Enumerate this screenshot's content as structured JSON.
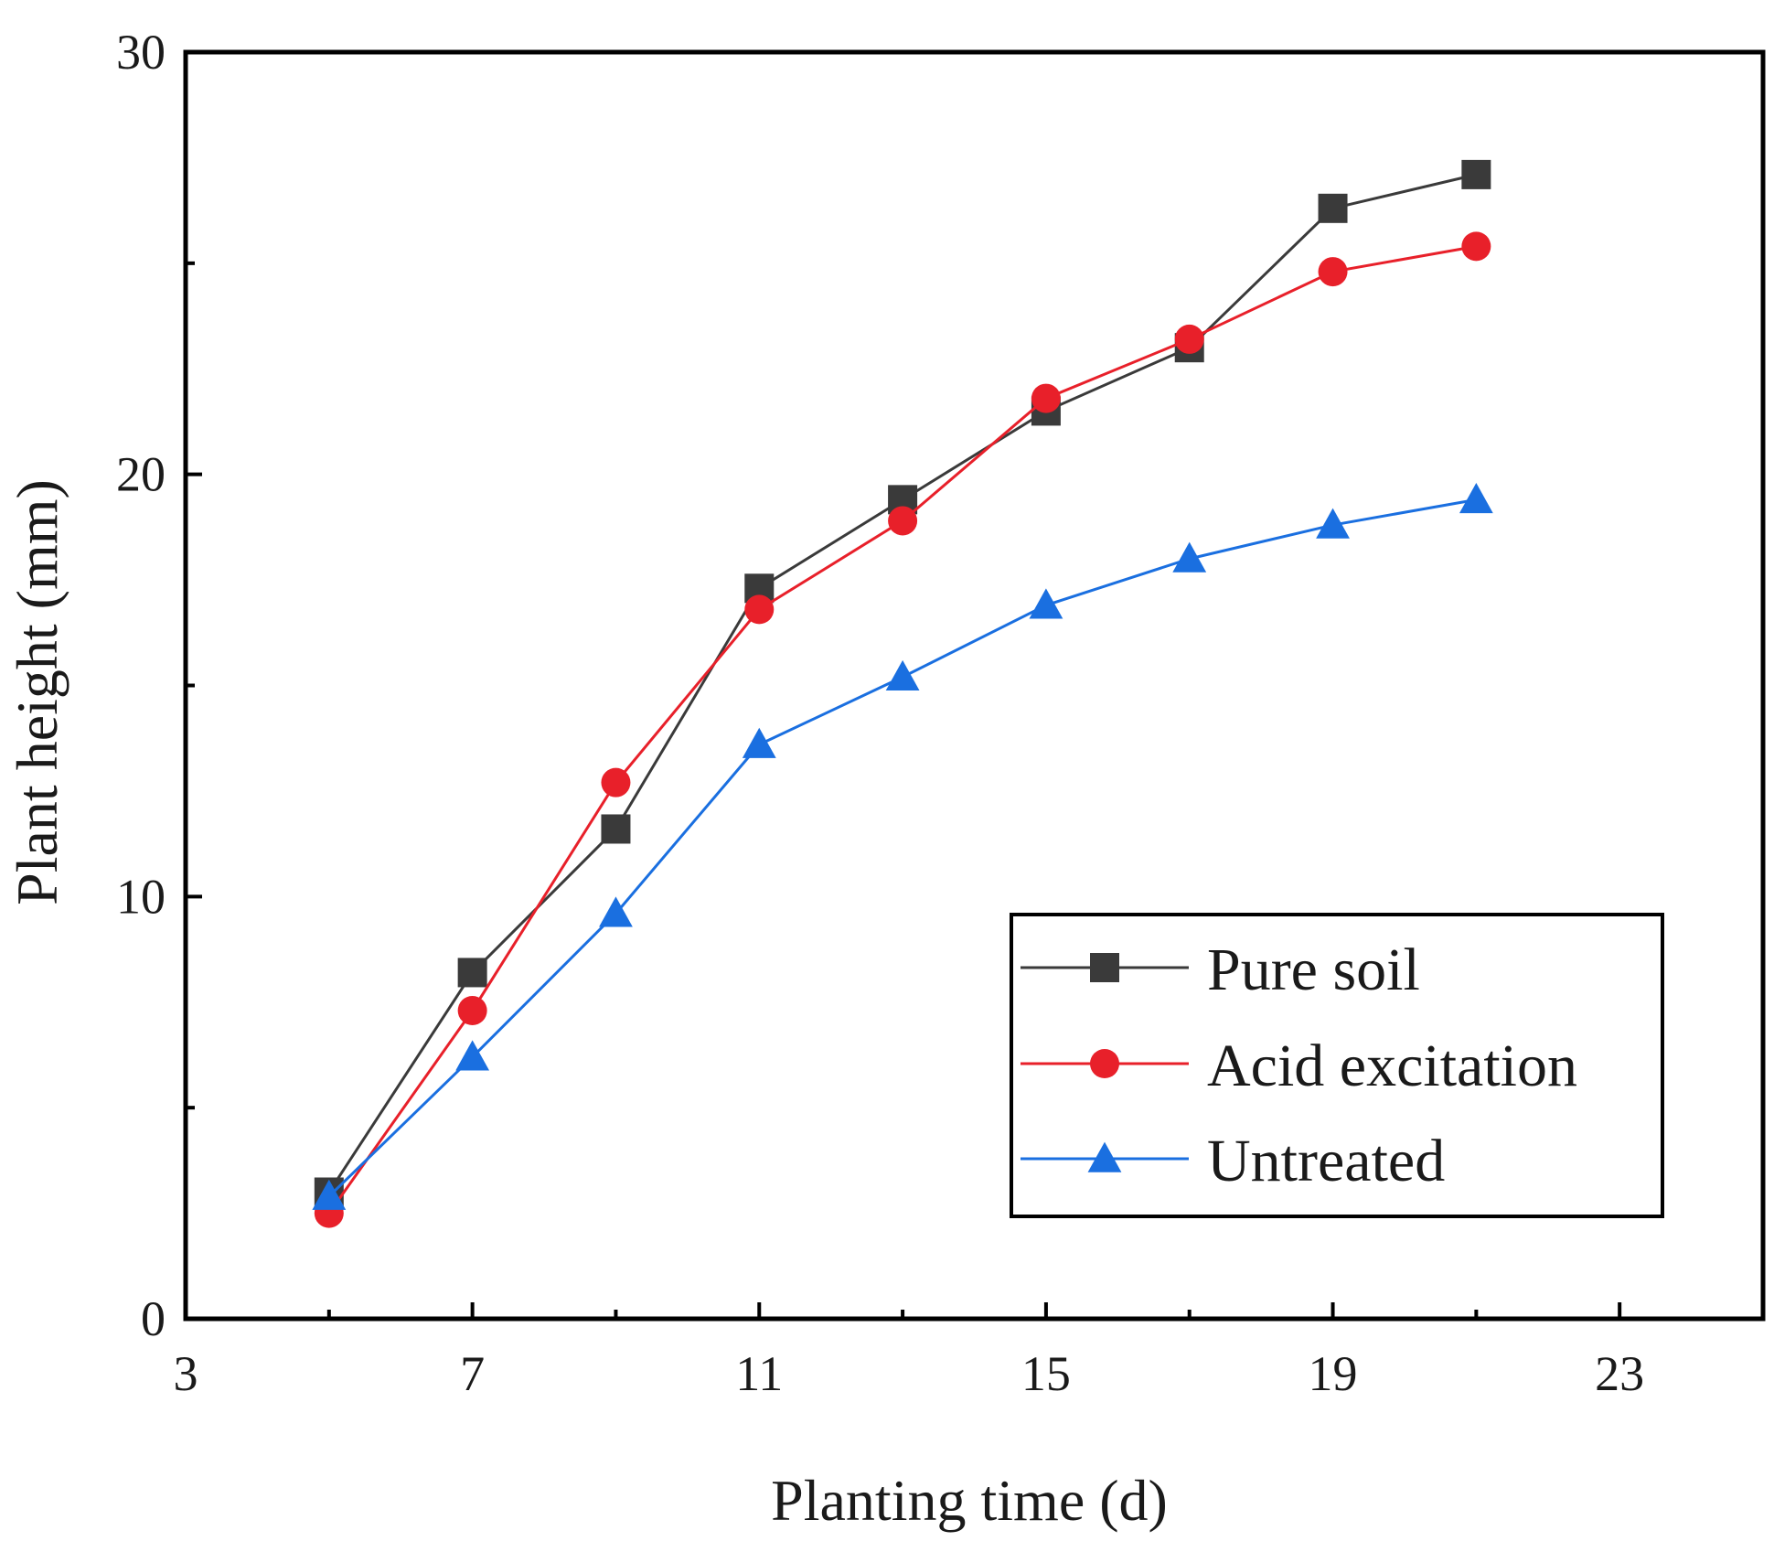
{
  "chart_data": {
    "type": "line",
    "title": "",
    "xlabel": "Planting time (d)",
    "ylabel": "Plant height (mm)",
    "xlim": [
      3,
      25
    ],
    "ylim": [
      0,
      30
    ],
    "xticks": [
      3,
      7,
      11,
      15,
      19,
      23
    ],
    "yticks": [
      0,
      10,
      20,
      30
    ],
    "grid": false,
    "legend_position": "bottom-right",
    "series": [
      {
        "name": "Pure soil",
        "color": "#3a3a3a",
        "marker": "square",
        "x": [
          5,
          7,
          9,
          11,
          13,
          15,
          17,
          19,
          21
        ],
        "y": [
          3.0,
          8.2,
          11.6,
          17.3,
          19.4,
          21.5,
          23.0,
          26.3,
          27.1
        ]
      },
      {
        "name": "Acid excitation",
        "color": "#e8202a",
        "marker": "circle",
        "x": [
          5,
          7,
          9,
          11,
          13,
          15,
          17,
          19,
          21
        ],
        "y": [
          2.5,
          7.3,
          12.7,
          16.8,
          18.9,
          21.8,
          23.2,
          24.8,
          25.4
        ]
      },
      {
        "name": "Untreated",
        "color": "#1a6fe0",
        "marker": "triangle",
        "x": [
          5,
          7,
          9,
          11,
          13,
          15,
          17,
          19,
          21
        ],
        "y": [
          2.9,
          6.2,
          9.6,
          13.6,
          15.2,
          16.9,
          18.0,
          18.8,
          19.4
        ]
      }
    ]
  }
}
